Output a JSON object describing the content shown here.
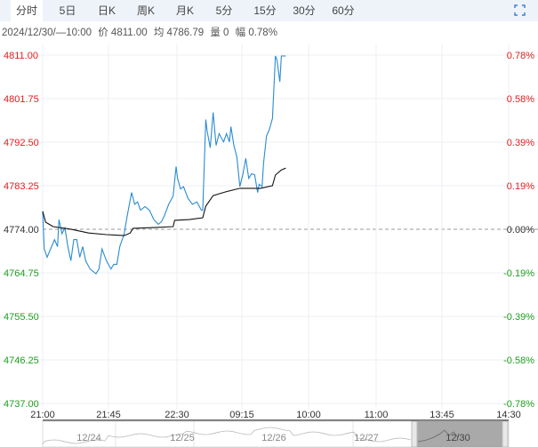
{
  "tabs": [
    {
      "label": "分时",
      "active": true
    },
    {
      "label": "5日"
    },
    {
      "label": "日K"
    },
    {
      "label": "周K"
    },
    {
      "label": "月K"
    },
    {
      "label": "5分"
    },
    {
      "label": "15分"
    },
    {
      "label": "30分"
    },
    {
      "label": "60分"
    }
  ],
  "fullscreen_icon": "fullscreen-icon",
  "info": {
    "datetime": "2024/12/30/—10:00",
    "price": "价 4811.00",
    "avg": "均 4786.79",
    "volume": "量 0",
    "change": "幅 0.78%"
  },
  "colors": {
    "up": "#e02020",
    "down": "#20a020",
    "price_line": "#2a8bd0",
    "avg_line": "#111111",
    "flat": "#333333"
  },
  "chart_data": {
    "type": "line",
    "base_price": 4774.0,
    "ylim": [
      4737.0,
      4811.0
    ],
    "y_ticks_left": [
      "4811.00",
      "4801.75",
      "4792.50",
      "4783.25",
      "4774.00",
      "4764.75",
      "4755.50",
      "4746.25",
      "4737.00"
    ],
    "y_ticks_right": [
      "0.78%",
      "0.58%",
      "0.39%",
      "0.19%",
      "0.00%",
      "-0.19%",
      "-0.39%",
      "-0.58%",
      "-0.78%"
    ],
    "x_ticks": [
      "21:00",
      "21:45",
      "22:30",
      "09:15",
      "10:00",
      "11:00",
      "13:45",
      "14:30"
    ],
    "grid": true,
    "series": [
      {
        "key": "price",
        "points": [
          [
            "21:00",
            4778
          ],
          [
            "21:01",
            4770
          ],
          [
            "21:03",
            4768.25
          ],
          [
            "21:06",
            4770.5
          ],
          [
            "21:08",
            4772
          ],
          [
            "21:10",
            4770.5
          ],
          [
            "21:11",
            4776.25
          ],
          [
            "21:13",
            4773.25
          ],
          [
            "21:15",
            4774.5
          ],
          [
            "21:17",
            4770.5
          ],
          [
            "21:19",
            4767.5
          ],
          [
            "21:21",
            4772
          ],
          [
            "21:23",
            4772
          ],
          [
            "21:25",
            4768.25
          ],
          [
            "21:27",
            4770.5
          ],
          [
            "21:29",
            4767.5
          ],
          [
            "21:32",
            4765.75
          ],
          [
            "21:36",
            4764.75
          ],
          [
            "21:38",
            4765.75
          ],
          [
            "21:40",
            4770
          ],
          [
            "21:43",
            4767.5
          ],
          [
            "21:46",
            4765.75
          ],
          [
            "21:48",
            4766.75
          ],
          [
            "21:50",
            4766.75
          ],
          [
            "21:52",
            4770.5
          ],
          [
            "21:55",
            4773.25
          ],
          [
            "21:57",
            4777
          ],
          [
            "22:00",
            4782
          ],
          [
            "22:02",
            4779.5
          ],
          [
            "22:04",
            4780
          ],
          [
            "22:06",
            4778.25
          ],
          [
            "22:09",
            4779
          ],
          [
            "22:12",
            4778.25
          ],
          [
            "22:15",
            4776.25
          ],
          [
            "22:18",
            4775.25
          ],
          [
            "22:20",
            4775.75
          ],
          [
            "22:22",
            4777
          ],
          [
            "22:25",
            4779.5
          ],
          [
            "22:28",
            4781.25
          ],
          [
            "22:30",
            4787.5
          ],
          [
            "22:31",
            4785
          ],
          [
            "22:33",
            4782.75
          ],
          [
            "22:35",
            4783.25
          ],
          [
            "22:38",
            4780.75
          ],
          [
            "22:41",
            4779.5
          ],
          [
            "22:44",
            4780
          ],
          [
            "22:47",
            4778.25
          ],
          [
            "22:48",
            4778.25
          ],
          [
            "22:50",
            4797.5
          ],
          [
            "22:51",
            4795
          ],
          [
            "22:53",
            4791.5
          ],
          [
            "22:55",
            4799
          ],
          [
            "22:57",
            4792
          ],
          [
            "22:59",
            4794.5
          ],
          [
            "09:02",
            4792.75
          ],
          [
            "09:04",
            4794.5
          ],
          [
            "09:06",
            4792.75
          ],
          [
            "09:07",
            4796
          ],
          [
            "09:09",
            4792
          ],
          [
            "09:11",
            4789.5
          ],
          [
            "09:13",
            4783.25
          ],
          [
            "09:15",
            4785.75
          ],
          [
            "09:17",
            4789.25
          ],
          [
            "09:19",
            4785
          ],
          [
            "09:21",
            4786
          ],
          [
            "09:23",
            4785.75
          ],
          [
            "09:25",
            4782
          ],
          [
            "09:26",
            4783.75
          ],
          [
            "09:28",
            4783.25
          ],
          [
            "09:29",
            4788.25
          ],
          [
            "09:31",
            4794
          ],
          [
            "09:33",
            4795.5
          ],
          [
            "09:35",
            4797.75
          ],
          [
            "09:37",
            4811
          ],
          [
            "09:38",
            4810.25
          ],
          [
            "09:40",
            4805.5
          ],
          [
            "09:41",
            4811
          ],
          [
            "09:43",
            4811
          ],
          [
            "09:44",
            4811
          ]
        ]
      },
      {
        "key": "average",
        "points": [
          [
            "21:00",
            4778
          ],
          [
            "21:02",
            4775.7
          ],
          [
            "21:07",
            4774.75
          ],
          [
            "21:19",
            4774.2
          ],
          [
            "21:31",
            4773.4
          ],
          [
            "21:43",
            4773.05
          ],
          [
            "21:55",
            4772.85
          ],
          [
            "21:59",
            4773.4
          ],
          [
            "22:01",
            4774.4
          ],
          [
            "22:15",
            4774.55
          ],
          [
            "22:28",
            4774.75
          ],
          [
            "22:29",
            4776.1
          ],
          [
            "22:39",
            4776.25
          ],
          [
            "22:48",
            4776.65
          ],
          [
            "22:50",
            4779.1
          ],
          [
            "22:55",
            4781.35
          ],
          [
            "09:03",
            4782.1
          ],
          [
            "09:13",
            4782.9
          ],
          [
            "09:27",
            4782.9
          ],
          [
            "09:35",
            4783.45
          ],
          [
            "09:37",
            4785.7
          ],
          [
            "09:41",
            4786.8
          ],
          [
            "09:44",
            4787.2
          ]
        ]
      }
    ]
  },
  "navigator": {
    "dates": [
      "12/24",
      "12/25",
      "12/26",
      "12/27",
      "12/30"
    ]
  }
}
